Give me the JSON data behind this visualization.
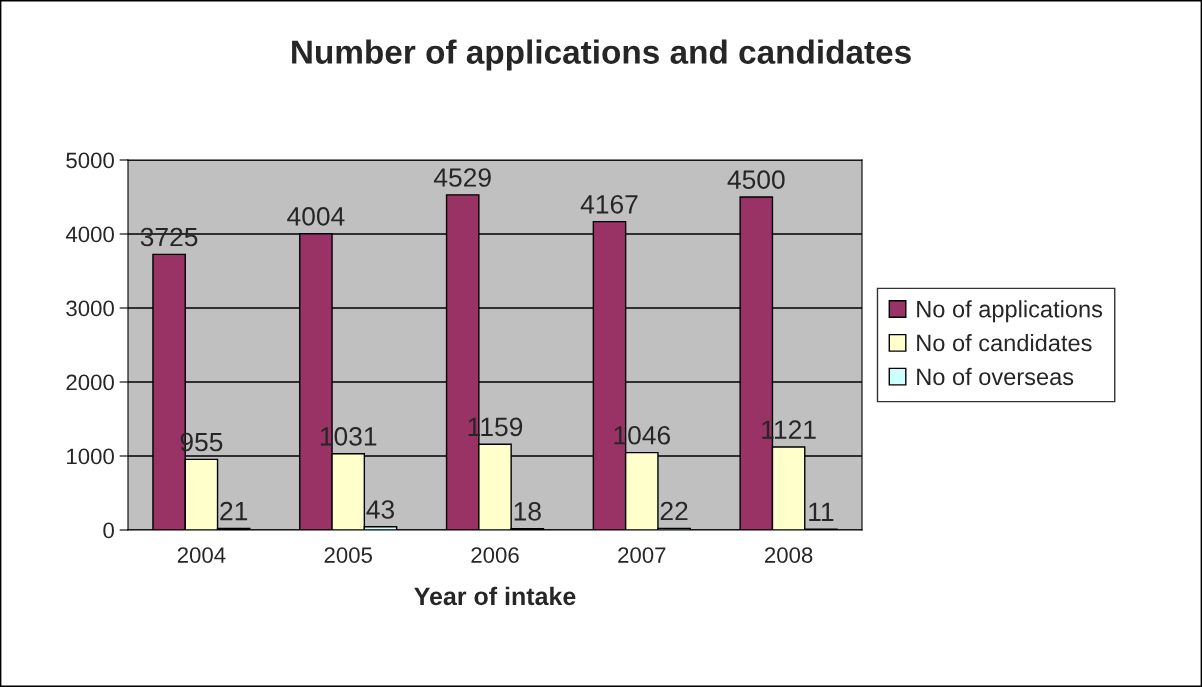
{
  "chart_data": {
    "type": "bar",
    "title": "Number of applications and candidates",
    "xlabel": "Year of intake",
    "categories": [
      "2004",
      "2005",
      "2006",
      "2007",
      "2008"
    ],
    "series": [
      {
        "name": "No of applications",
        "color": "#993366",
        "values": [
          3725,
          4004,
          4529,
          4167,
          4500
        ]
      },
      {
        "name": "No of candidates",
        "color": "#ffffcc",
        "values": [
          955,
          1031,
          1159,
          1046,
          1121
        ]
      },
      {
        "name": "No of overseas",
        "color": "#ccffff",
        "values": [
          21,
          43,
          18,
          22,
          11
        ]
      }
    ],
    "ylim": [
      0,
      5000
    ],
    "yticks": [
      0,
      1000,
      2000,
      3000,
      4000,
      5000
    ],
    "grid": "y",
    "legend": "right",
    "data_labels": true
  }
}
